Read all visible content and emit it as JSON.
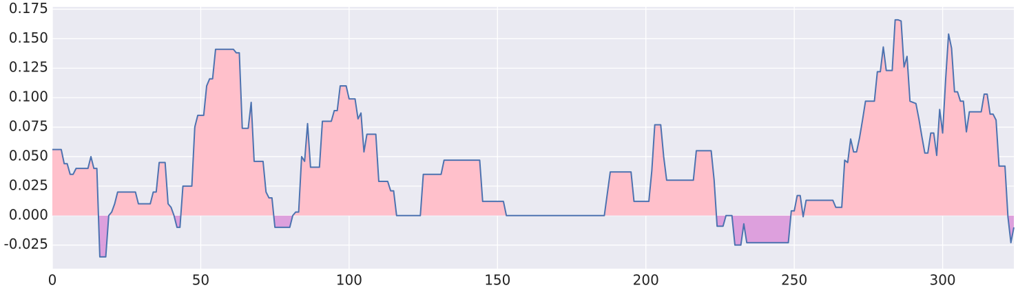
{
  "chart_data": {
    "type": "area",
    "xlim": [
      0,
      324
    ],
    "ylim": [
      -0.045,
      0.177
    ],
    "xticks": [
      0,
      50,
      100,
      150,
      200,
      250,
      300
    ],
    "yticks": [
      {
        "value": -0.025,
        "label": "-0.025"
      },
      {
        "value": 0,
        "label": "0.000"
      },
      {
        "value": 0.025,
        "label": "0.025"
      },
      {
        "value": 0.05,
        "label": "0.050"
      },
      {
        "value": 0.075,
        "label": "0.075"
      },
      {
        "value": 0.1,
        "label": "0.100"
      },
      {
        "value": 0.125,
        "label": "0.125"
      },
      {
        "value": 0.15,
        "label": "0.150"
      },
      {
        "value": 0.175,
        "label": "0.175"
      }
    ],
    "grid": true,
    "positive_color": "#ffc0cb",
    "negative_color": "#dda0dd",
    "series": [
      {
        "color": "#4c72b0",
        "x": [
          0,
          3,
          4,
          5,
          6,
          7,
          8,
          12,
          13,
          14,
          15,
          16,
          18,
          19,
          20,
          21,
          22,
          28,
          29,
          33,
          34,
          35,
          36,
          38,
          39,
          40,
          41,
          42,
          43,
          44,
          47,
          48,
          49,
          51,
          52,
          53,
          54,
          55,
          61,
          62,
          63,
          64,
          66,
          67,
          68,
          71,
          72,
          73,
          74,
          75,
          80,
          81,
          82,
          83,
          84,
          85,
          86,
          87,
          90,
          91,
          94,
          95,
          96,
          97,
          99,
          100,
          102,
          103,
          104,
          105,
          106,
          109,
          110,
          113,
          114,
          115,
          116,
          124,
          125,
          131,
          132,
          144,
          145,
          152,
          153,
          186,
          188,
          195,
          196,
          201,
          202,
          203,
          205,
          206,
          207,
          216,
          217,
          222,
          223,
          224,
          226,
          227,
          229,
          230,
          232,
          233,
          234,
          248,
          249,
          250,
          251,
          252,
          253,
          254,
          263,
          264,
          266,
          267,
          268,
          269,
          270,
          271,
          272,
          273,
          274,
          277,
          278,
          279,
          280,
          281,
          283,
          284,
          285,
          286,
          287,
          288,
          289,
          291,
          292,
          293,
          294,
          295,
          296,
          297,
          298,
          299,
          300,
          301,
          302,
          303,
          304,
          305,
          306,
          307,
          308,
          309,
          313,
          314,
          315,
          316,
          317,
          318,
          319,
          321,
          322,
          323,
          324
        ],
        "values": [
          0.056,
          0.056,
          0.044,
          0.044,
          0.035,
          0.035,
          0.04,
          0.04,
          0.05,
          0.04,
          0.04,
          -0.035,
          -0.035,
          0,
          0.003,
          0.01,
          0.02,
          0.02,
          0.01,
          0.01,
          0.02,
          0.02,
          0.045,
          0.045,
          0.01,
          0.007,
          0,
          -0.01,
          -0.01,
          0.025,
          0.025,
          0.075,
          0.085,
          0.085,
          0.11,
          0.116,
          0.116,
          0.141,
          0.141,
          0.138,
          0.138,
          0.074,
          0.074,
          0.096,
          0.046,
          0.046,
          0.02,
          0.015,
          0.015,
          -0.01,
          -0.01,
          0,
          0.003,
          0.003,
          0.05,
          0.046,
          0.078,
          0.041,
          0.041,
          0.08,
          0.08,
          0.089,
          0.089,
          0.11,
          0.11,
          0.099,
          0.099,
          0.082,
          0.087,
          0.054,
          0.069,
          0.069,
          0.029,
          0.029,
          0.021,
          0.021,
          0,
          0,
          0.035,
          0.035,
          0.047,
          0.047,
          0.012,
          0.012,
          0,
          0,
          0.037,
          0.037,
          0.012,
          0.012,
          0.038,
          0.077,
          0.077,
          0.05,
          0.03,
          0.03,
          0.055,
          0.055,
          0.03,
          -0.009,
          -0.009,
          0,
          0,
          -0.025,
          -0.025,
          -0.007,
          -0.023,
          -0.023,
          0.004,
          0.004,
          0.017,
          0.017,
          -0.001,
          0.013,
          0.013,
          0.007,
          0.007,
          0.047,
          0.045,
          0.065,
          0.054,
          0.054,
          0.066,
          0.081,
          0.097,
          0.097,
          0.122,
          0.122,
          0.143,
          0.123,
          0.123,
          0.166,
          0.166,
          0.165,
          0.126,
          0.135,
          0.097,
          0.095,
          0.082,
          0.067,
          0.053,
          0.053,
          0.07,
          0.07,
          0.051,
          0.09,
          0.07,
          0.115,
          0.154,
          0.142,
          0.105,
          0.105,
          0.097,
          0.097,
          0.071,
          0.088,
          0.088,
          0.103,
          0.103,
          0.086,
          0.086,
          0.081,
          0.042,
          0.042,
          -0.001,
          -0.023,
          -0.01
        ]
      }
    ]
  }
}
